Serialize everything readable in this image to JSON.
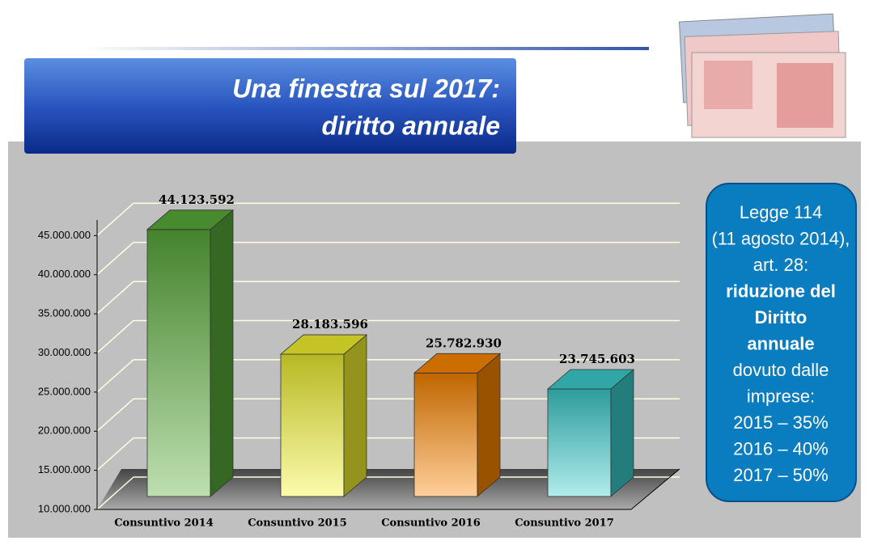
{
  "chart_data": {
    "type": "bar",
    "title": [
      "Una finestra sul 2017:",
      "diritto annuale"
    ],
    "categories": [
      "Consuntivo 2014",
      "Consuntivo 2015",
      "Consuntivo 2016",
      "Consuntivo 2017"
    ],
    "values": [
      44123592,
      28183596,
      25782930,
      23745603
    ],
    "value_labels": [
      "44.123.592",
      "28.183.596",
      "25.782.930",
      "23.745.603"
    ],
    "colors": [
      "#5aae3a",
      "#f5f530",
      "#ff8800",
      "#3cd0d0"
    ],
    "ylim": [
      10000000,
      47000000
    ],
    "yticks": [
      {
        "value": 10000000,
        "label": "10.000.000"
      },
      {
        "value": 15000000,
        "label": "15.000.000"
      },
      {
        "value": 20000000,
        "label": "20.000.000"
      },
      {
        "value": 25000000,
        "label": "25.000.000"
      },
      {
        "value": 30000000,
        "label": "30.000.000"
      },
      {
        "value": 35000000,
        "label": "35.000.000"
      },
      {
        "value": 40000000,
        "label": "40.000.000"
      },
      {
        "value": 45000000,
        "label": "45.000.000"
      }
    ],
    "grid": true,
    "note": [
      "Legge 114",
      "(11 agosto 2014),",
      "art. 28:",
      "riduzione del",
      "Diritto",
      "annuale",
      "dovuto dalle",
      "imprese:",
      "2015 – 35%",
      "2016 – 40%",
      "2017 – 50%"
    ]
  }
}
